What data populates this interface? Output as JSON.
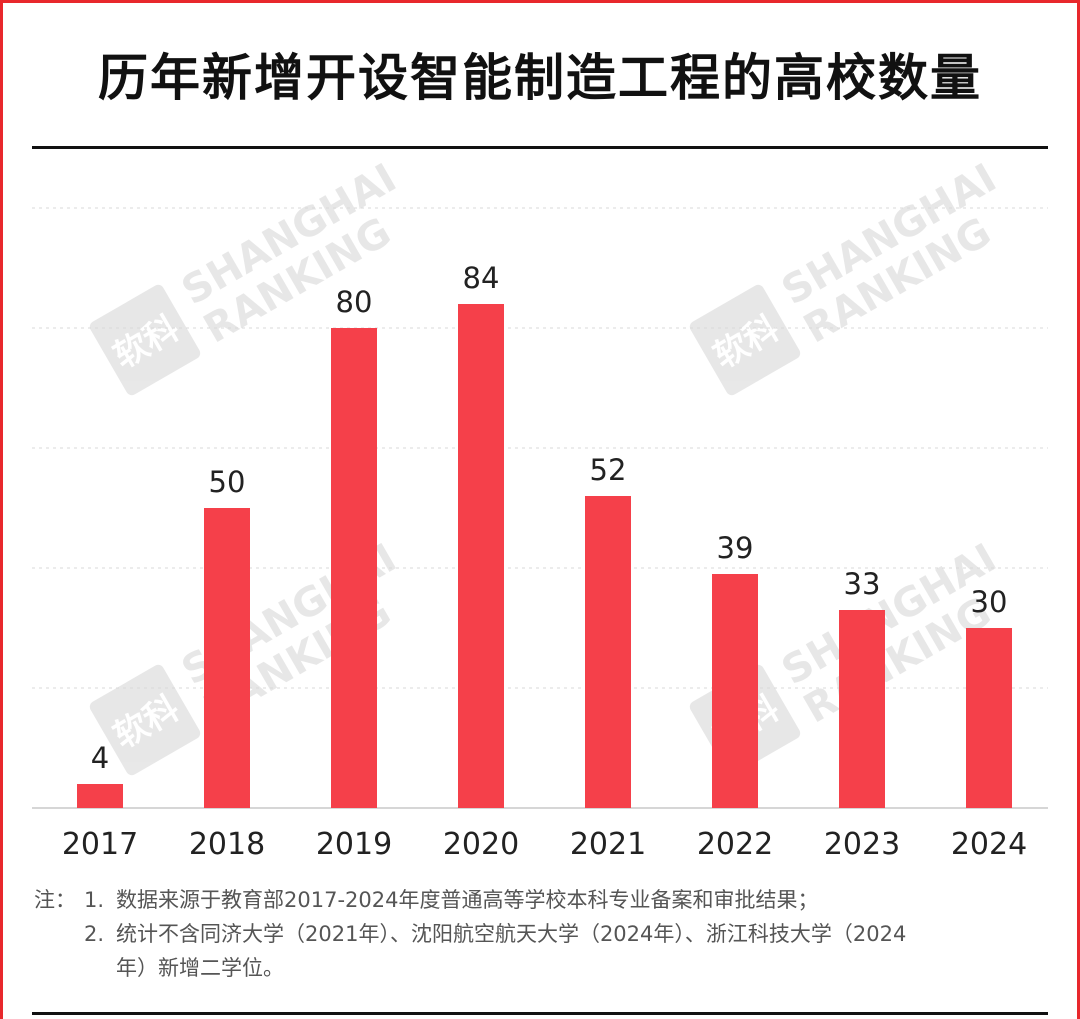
{
  "title": "历年新增开设智能制造工程的高校数量",
  "watermark": {
    "logo_text": "软科",
    "line1": "SHANGHAI",
    "line2": "RANKING"
  },
  "colors": {
    "bar": "#f5404a",
    "frame": "#e8282c",
    "grid": "#d9d9d9"
  },
  "chart_data": {
    "type": "bar",
    "categories": [
      "2017",
      "2018",
      "2019",
      "2020",
      "2021",
      "2022",
      "2023",
      "2024"
    ],
    "values": [
      4,
      50,
      80,
      84,
      52,
      39,
      33,
      30
    ],
    "ylim": [
      0,
      100
    ],
    "grid": true,
    "data_labels": true
  },
  "notes": {
    "lead": "注：",
    "items": [
      {
        "num": "1.",
        "text": "数据来源于教育部2017-2024年度普通高等学校本科专业备案和审批结果；"
      },
      {
        "num": "2.",
        "text": "统计不含同济大学（2021年）、沈阳航空航天大学（2024年）、浙江科技大学（2024"
      }
    ],
    "continuation": "年）新增二学位。"
  }
}
